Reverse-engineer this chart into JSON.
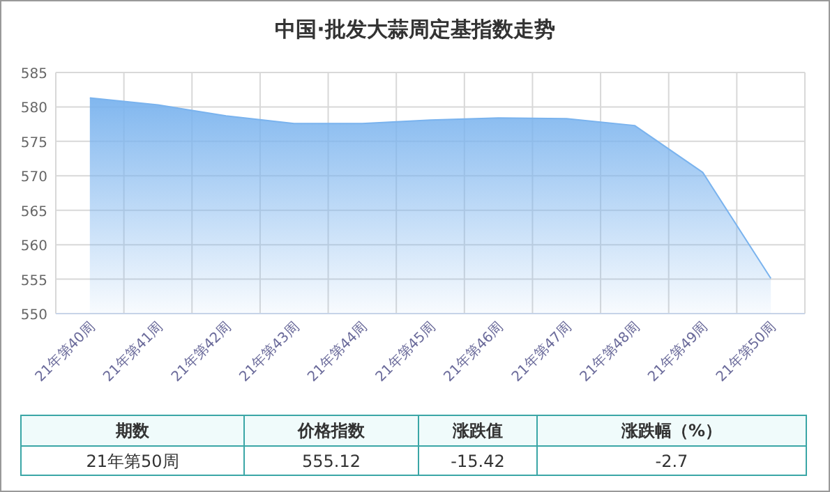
{
  "chart_data": {
    "type": "area",
    "title": "中国·批发大蒜周定基指数走势",
    "categories": [
      "21年第40周",
      "21年第41周",
      "21年第42周",
      "21年第43周",
      "21年第44周",
      "21年第45周",
      "21年第46周",
      "21年第47周",
      "21年第48周",
      "21年第49周",
      "21年第50周"
    ],
    "series": [
      {
        "color": "#7ab3ee",
        "values": [
          581.3,
          580.3,
          578.7,
          577.6,
          577.6,
          578.1,
          578.4,
          578.3,
          577.3,
          570.5,
          555.1
        ]
      }
    ],
    "ylim": [
      550,
      585
    ],
    "yticks": [
      550,
      555,
      560,
      565,
      570,
      575,
      580,
      585
    ],
    "grid": true,
    "annotations": [
      "期数",
      "价格指数",
      "涨跌值",
      "涨跌幅（%）",
      "21年第50周",
      "555.12",
      "-15.42",
      "-2.7"
    ]
  }
}
